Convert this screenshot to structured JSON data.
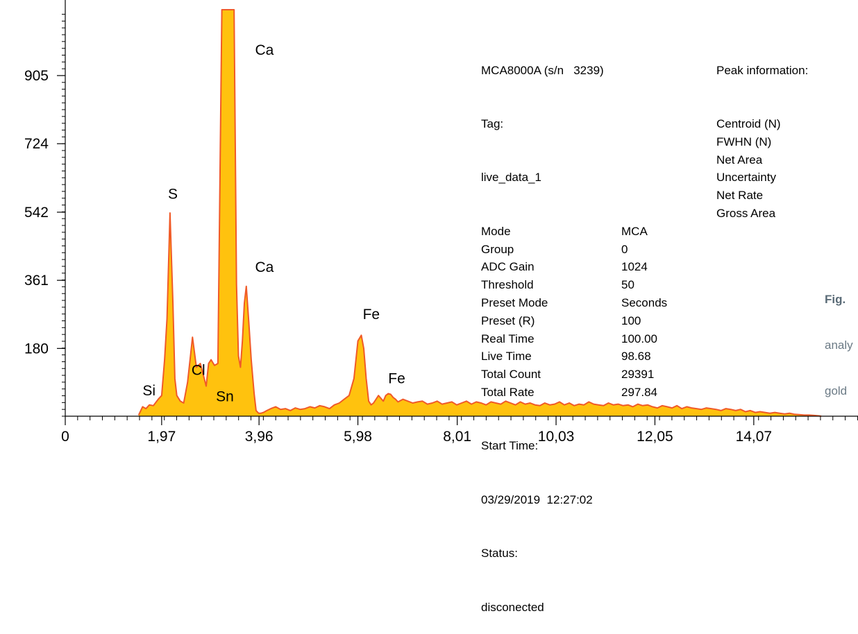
{
  "chart_data": {
    "type": "area",
    "xlabel": "",
    "ylabel": "",
    "xlim": [
      0,
      16.2
    ],
    "ylim": [
      0,
      1080
    ],
    "x_ticks": [
      "0",
      "1,97",
      "3,96",
      "5,98",
      "8,01",
      "10,03",
      "12,05",
      "14,07"
    ],
    "x_tick_values": [
      0,
      1.97,
      3.96,
      5.98,
      8.01,
      10.03,
      12.05,
      14.07
    ],
    "y_ticks": [
      "180",
      "361",
      "542",
      "724",
      "905"
    ],
    "y_tick_values": [
      180,
      361,
      542,
      724,
      905
    ],
    "fill_color": "#ffc20e",
    "line_color": "#f05a28",
    "series": [
      {
        "x": [
          1.5,
          1.58,
          1.65,
          1.72,
          1.8,
          1.9,
          1.97,
          2.03,
          2.08,
          2.14,
          2.2,
          2.24,
          2.28,
          2.35,
          2.42,
          2.5,
          2.55,
          2.6,
          2.68,
          2.76,
          2.82,
          2.88,
          2.93,
          2.98,
          3.05,
          3.12,
          3.2,
          3.26,
          3.34,
          3.4,
          3.45,
          3.5,
          3.54,
          3.58,
          3.62,
          3.66,
          3.7,
          3.75,
          3.8,
          3.86,
          3.9,
          3.95,
          4.0,
          4.05,
          4.12,
          4.2,
          4.3,
          4.4,
          4.5,
          4.6,
          4.7,
          4.8,
          4.9,
          5.0,
          5.1,
          5.2,
          5.3,
          5.4,
          5.5,
          5.6,
          5.7,
          5.8,
          5.9,
          5.98,
          6.05,
          6.1,
          6.15,
          6.2,
          6.25,
          6.3,
          6.4,
          6.5,
          6.55,
          6.6,
          6.65,
          6.7,
          6.75,
          6.8,
          6.9,
          7.0,
          7.1,
          7.2,
          7.3,
          7.4,
          7.5,
          7.6,
          7.7,
          7.8,
          7.9,
          8.0,
          8.1,
          8.2,
          8.3,
          8.4,
          8.5,
          8.6,
          8.7,
          8.8,
          8.9,
          9.0,
          9.1,
          9.2,
          9.3,
          9.4,
          9.5,
          9.6,
          9.7,
          9.8,
          9.9,
          10.0,
          10.1,
          10.2,
          10.3,
          10.4,
          10.5,
          10.6,
          10.7,
          10.8,
          10.9,
          11.0,
          11.1,
          11.2,
          11.3,
          11.4,
          11.5,
          11.6,
          11.7,
          11.8,
          11.9,
          12.0,
          12.1,
          12.2,
          12.3,
          12.4,
          12.5,
          12.6,
          12.7,
          12.8,
          12.9,
          13.0,
          13.1,
          13.2,
          13.3,
          13.4,
          13.5,
          13.6,
          13.7,
          13.8,
          13.9,
          14.0,
          14.1,
          14.2,
          14.3,
          14.4,
          14.5,
          14.6,
          14.7,
          14.8,
          14.9,
          15.0,
          15.1,
          15.2,
          15.3,
          15.4,
          15.45
        ],
        "y": [
          3,
          25,
          20,
          30,
          28,
          45,
          55,
          150,
          260,
          540,
          300,
          100,
          55,
          40,
          35,
          90,
          150,
          210,
          130,
          140,
          110,
          80,
          140,
          150,
          135,
          140,
          1080,
          1080,
          1080,
          1080,
          1080,
          350,
          160,
          130,
          200,
          300,
          345,
          250,
          150,
          60,
          15,
          8,
          8,
          10,
          15,
          20,
          25,
          18,
          20,
          15,
          22,
          18,
          20,
          25,
          22,
          28,
          25,
          20,
          30,
          35,
          45,
          55,
          100,
          200,
          215,
          180,
          100,
          40,
          30,
          35,
          55,
          40,
          55,
          60,
          58,
          50,
          45,
          38,
          45,
          40,
          35,
          38,
          40,
          32,
          35,
          40,
          32,
          35,
          38,
          30,
          35,
          40,
          32,
          38,
          35,
          30,
          38,
          35,
          32,
          40,
          35,
          30,
          38,
          32,
          35,
          30,
          28,
          35,
          30,
          32,
          38,
          30,
          35,
          28,
          32,
          30,
          38,
          32,
          30,
          28,
          35,
          30,
          32,
          28,
          30,
          25,
          32,
          28,
          30,
          25,
          22,
          28,
          25,
          22,
          28,
          20,
          25,
          22,
          20,
          18,
          22,
          20,
          18,
          15,
          20,
          18,
          15,
          18,
          12,
          15,
          10,
          12,
          10,
          8,
          10,
          8,
          6,
          8,
          5,
          4,
          3,
          3,
          2,
          1,
          0
        ]
      }
    ],
    "annotations": [
      {
        "text": "Ca",
        "x": 3.88,
        "y": 960
      },
      {
        "text": "S",
        "x": 2.1,
        "y": 578
      },
      {
        "text": "Ca",
        "x": 3.88,
        "y": 383
      },
      {
        "text": "Fe",
        "x": 6.08,
        "y": 258
      },
      {
        "text": "Cl",
        "x": 2.58,
        "y": 110
      },
      {
        "text": "Fe",
        "x": 6.6,
        "y": 88
      },
      {
        "text": "Si",
        "x": 1.58,
        "y": 55
      },
      {
        "text": "Sn",
        "x": 3.08,
        "y": 40
      }
    ]
  },
  "info_panel": {
    "device": "MCA8000A (s/n   3239)",
    "tag_label": "Tag:",
    "tag_value": "live_data_1",
    "rows": [
      {
        "label": "Mode",
        "value": "MCA"
      },
      {
        "label": "Group",
        "value": "0"
      },
      {
        "label": "ADC Gain",
        "value": "1024"
      },
      {
        "label": "Threshold",
        "value": "50"
      },
      {
        "label": "Preset Mode",
        "value": "Seconds"
      },
      {
        "label": "Preset (R)",
        "value": "100"
      },
      {
        "label": "Real Time",
        "value": "100.00"
      },
      {
        "label": "Live Time",
        "value": "98.68"
      },
      {
        "label": "Total Count",
        "value": "29391"
      },
      {
        "label": "Total Rate",
        "value": "297.84"
      }
    ],
    "start_label": "Start Time:",
    "start_value": "03/29/2019  12:27:02",
    "status_label": "Status:",
    "status_value": "disconected"
  },
  "peak_info": {
    "title": "Peak information:",
    "items": [
      "Centroid (N)",
      "FWHN (N)",
      "Net Area",
      "Uncertainty",
      "Net Rate",
      "Gross Area"
    ]
  },
  "caption": {
    "fig": "Fig.",
    "line1": "analy",
    "line2": "gold"
  }
}
